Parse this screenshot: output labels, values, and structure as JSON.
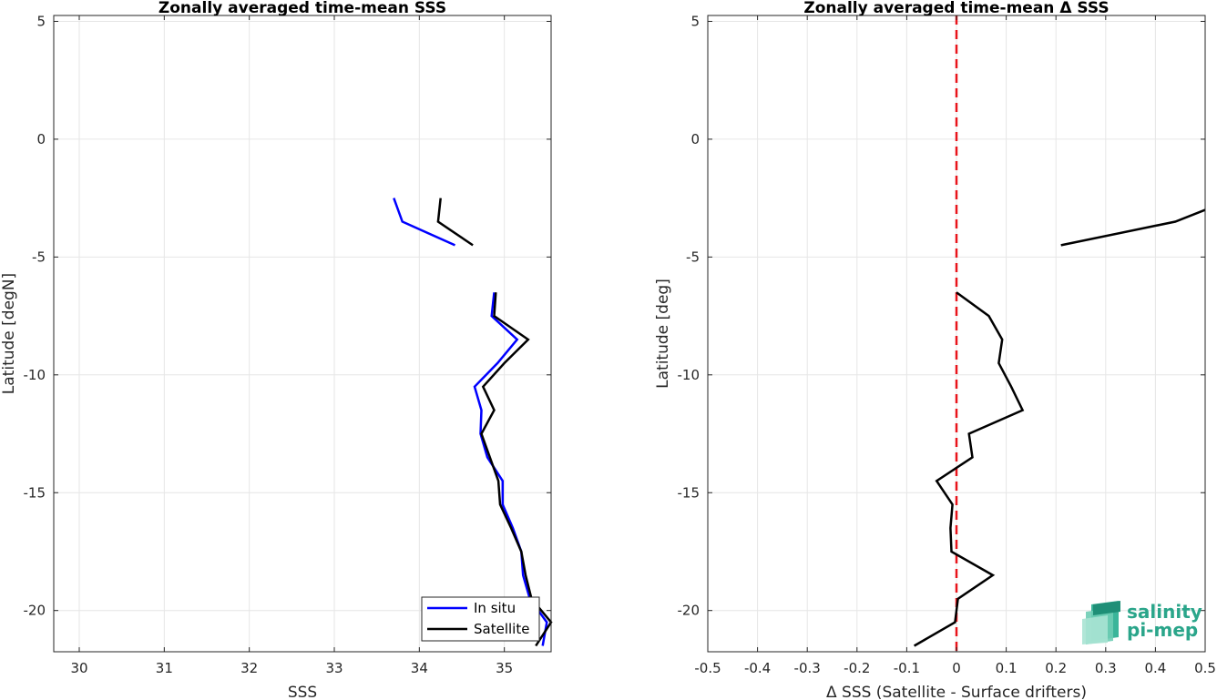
{
  "chart_data": [
    {
      "type": "line",
      "title": "Zonally averaged time-mean SSS",
      "xlabel": "SSS",
      "ylabel": "Latitude [degN]",
      "xlim": [
        29.7,
        35.55
      ],
      "ylim": [
        -21.75,
        5.25
      ],
      "xticks": [
        30,
        31,
        32,
        33,
        34,
        35
      ],
      "yticks": [
        5,
        0,
        -5,
        -10,
        -15,
        -20
      ],
      "grid": true,
      "legend_position": "bottom-right",
      "series": [
        {
          "name": "In situ",
          "color": "#0000ff",
          "segments": [
            [
              [
                33.7,
                -2.5
              ],
              [
                33.8,
                -3.5
              ],
              [
                34.42,
                -4.5
              ]
            ],
            [
              [
                34.88,
                -6.5
              ],
              [
                34.85,
                -7.5
              ],
              [
                35.15,
                -8.5
              ],
              [
                34.92,
                -9.5
              ],
              [
                34.65,
                -10.5
              ],
              [
                34.73,
                -11.5
              ],
              [
                34.72,
                -12.5
              ],
              [
                34.8,
                -13.5
              ],
              [
                34.98,
                -14.5
              ],
              [
                34.98,
                -15.5
              ],
              [
                35.1,
                -16.5
              ],
              [
                35.2,
                -17.5
              ],
              [
                35.22,
                -18.5
              ],
              [
                35.3,
                -19.5
              ],
              [
                35.5,
                -20.5
              ],
              [
                35.45,
                -21.5
              ]
            ]
          ]
        },
        {
          "name": "Satellite",
          "color": "#000000",
          "segments": [
            [
              [
                34.25,
                -2.5
              ],
              [
                34.22,
                -3.5
              ],
              [
                34.63,
                -4.5
              ]
            ],
            [
              [
                34.9,
                -6.5
              ],
              [
                34.88,
                -7.5
              ],
              [
                35.28,
                -8.5
              ],
              [
                35.0,
                -9.5
              ],
              [
                34.75,
                -10.5
              ],
              [
                34.88,
                -11.5
              ],
              [
                34.73,
                -12.5
              ],
              [
                34.83,
                -13.5
              ],
              [
                34.93,
                -14.5
              ],
              [
                34.95,
                -15.5
              ],
              [
                35.08,
                -16.5
              ],
              [
                35.2,
                -17.5
              ],
              [
                35.25,
                -18.5
              ],
              [
                35.32,
                -19.5
              ],
              [
                35.55,
                -20.5
              ],
              [
                35.37,
                -21.5
              ]
            ]
          ]
        }
      ]
    },
    {
      "type": "line",
      "title": "Zonally averaged time-mean Δ SSS",
      "xlabel": "Δ SSS (Satellite - Surface drifters)",
      "ylabel": "Latitude [deg]",
      "xlim": [
        -0.5,
        0.5
      ],
      "ylim": [
        -21.75,
        5.25
      ],
      "xticks": [
        -0.5,
        -0.4,
        -0.3,
        -0.2,
        -0.1,
        0,
        0.1,
        0.2,
        0.3,
        0.4,
        0.5
      ],
      "xticklabels": [
        "-0.5",
        "-0.4",
        "-0.3",
        "-0.2",
        "-0.1",
        "0",
        "0.1",
        "0.2",
        "0.3",
        "0.4",
        "0.5"
      ],
      "yticks": [
        5,
        0,
        -5,
        -10,
        -15,
        -20
      ],
      "grid": true,
      "reference_line": {
        "x": 0,
        "color": "#e8141b",
        "style": "dashed"
      },
      "series": [
        {
          "color": "#000000",
          "segments": [
            [
              [
                0.5,
                -3.0
              ],
              [
                0.44,
                -3.5
              ],
              [
                0.21,
                -4.5
              ]
            ],
            [
              [
                0.0,
                -6.5
              ],
              [
                0.065,
                -7.5
              ],
              [
                0.092,
                -8.5
              ],
              [
                0.085,
                -9.5
              ],
              [
                0.11,
                -10.5
              ],
              [
                0.133,
                -11.5
              ],
              [
                0.025,
                -12.5
              ],
              [
                0.032,
                -13.5
              ],
              [
                -0.04,
                -14.5
              ],
              [
                -0.008,
                -15.5
              ],
              [
                -0.012,
                -16.5
              ],
              [
                -0.01,
                -17.5
              ],
              [
                0.073,
                -18.5
              ],
              [
                0.003,
                -19.5
              ],
              [
                -0.003,
                -20.5
              ],
              [
                -0.085,
                -21.5
              ]
            ]
          ]
        }
      ]
    }
  ],
  "legend": {
    "entries": [
      "In situ",
      "Satellite"
    ]
  },
  "logo": {
    "line1": "salinity",
    "line2": "pi-mep",
    "color": "#2aa58a"
  }
}
